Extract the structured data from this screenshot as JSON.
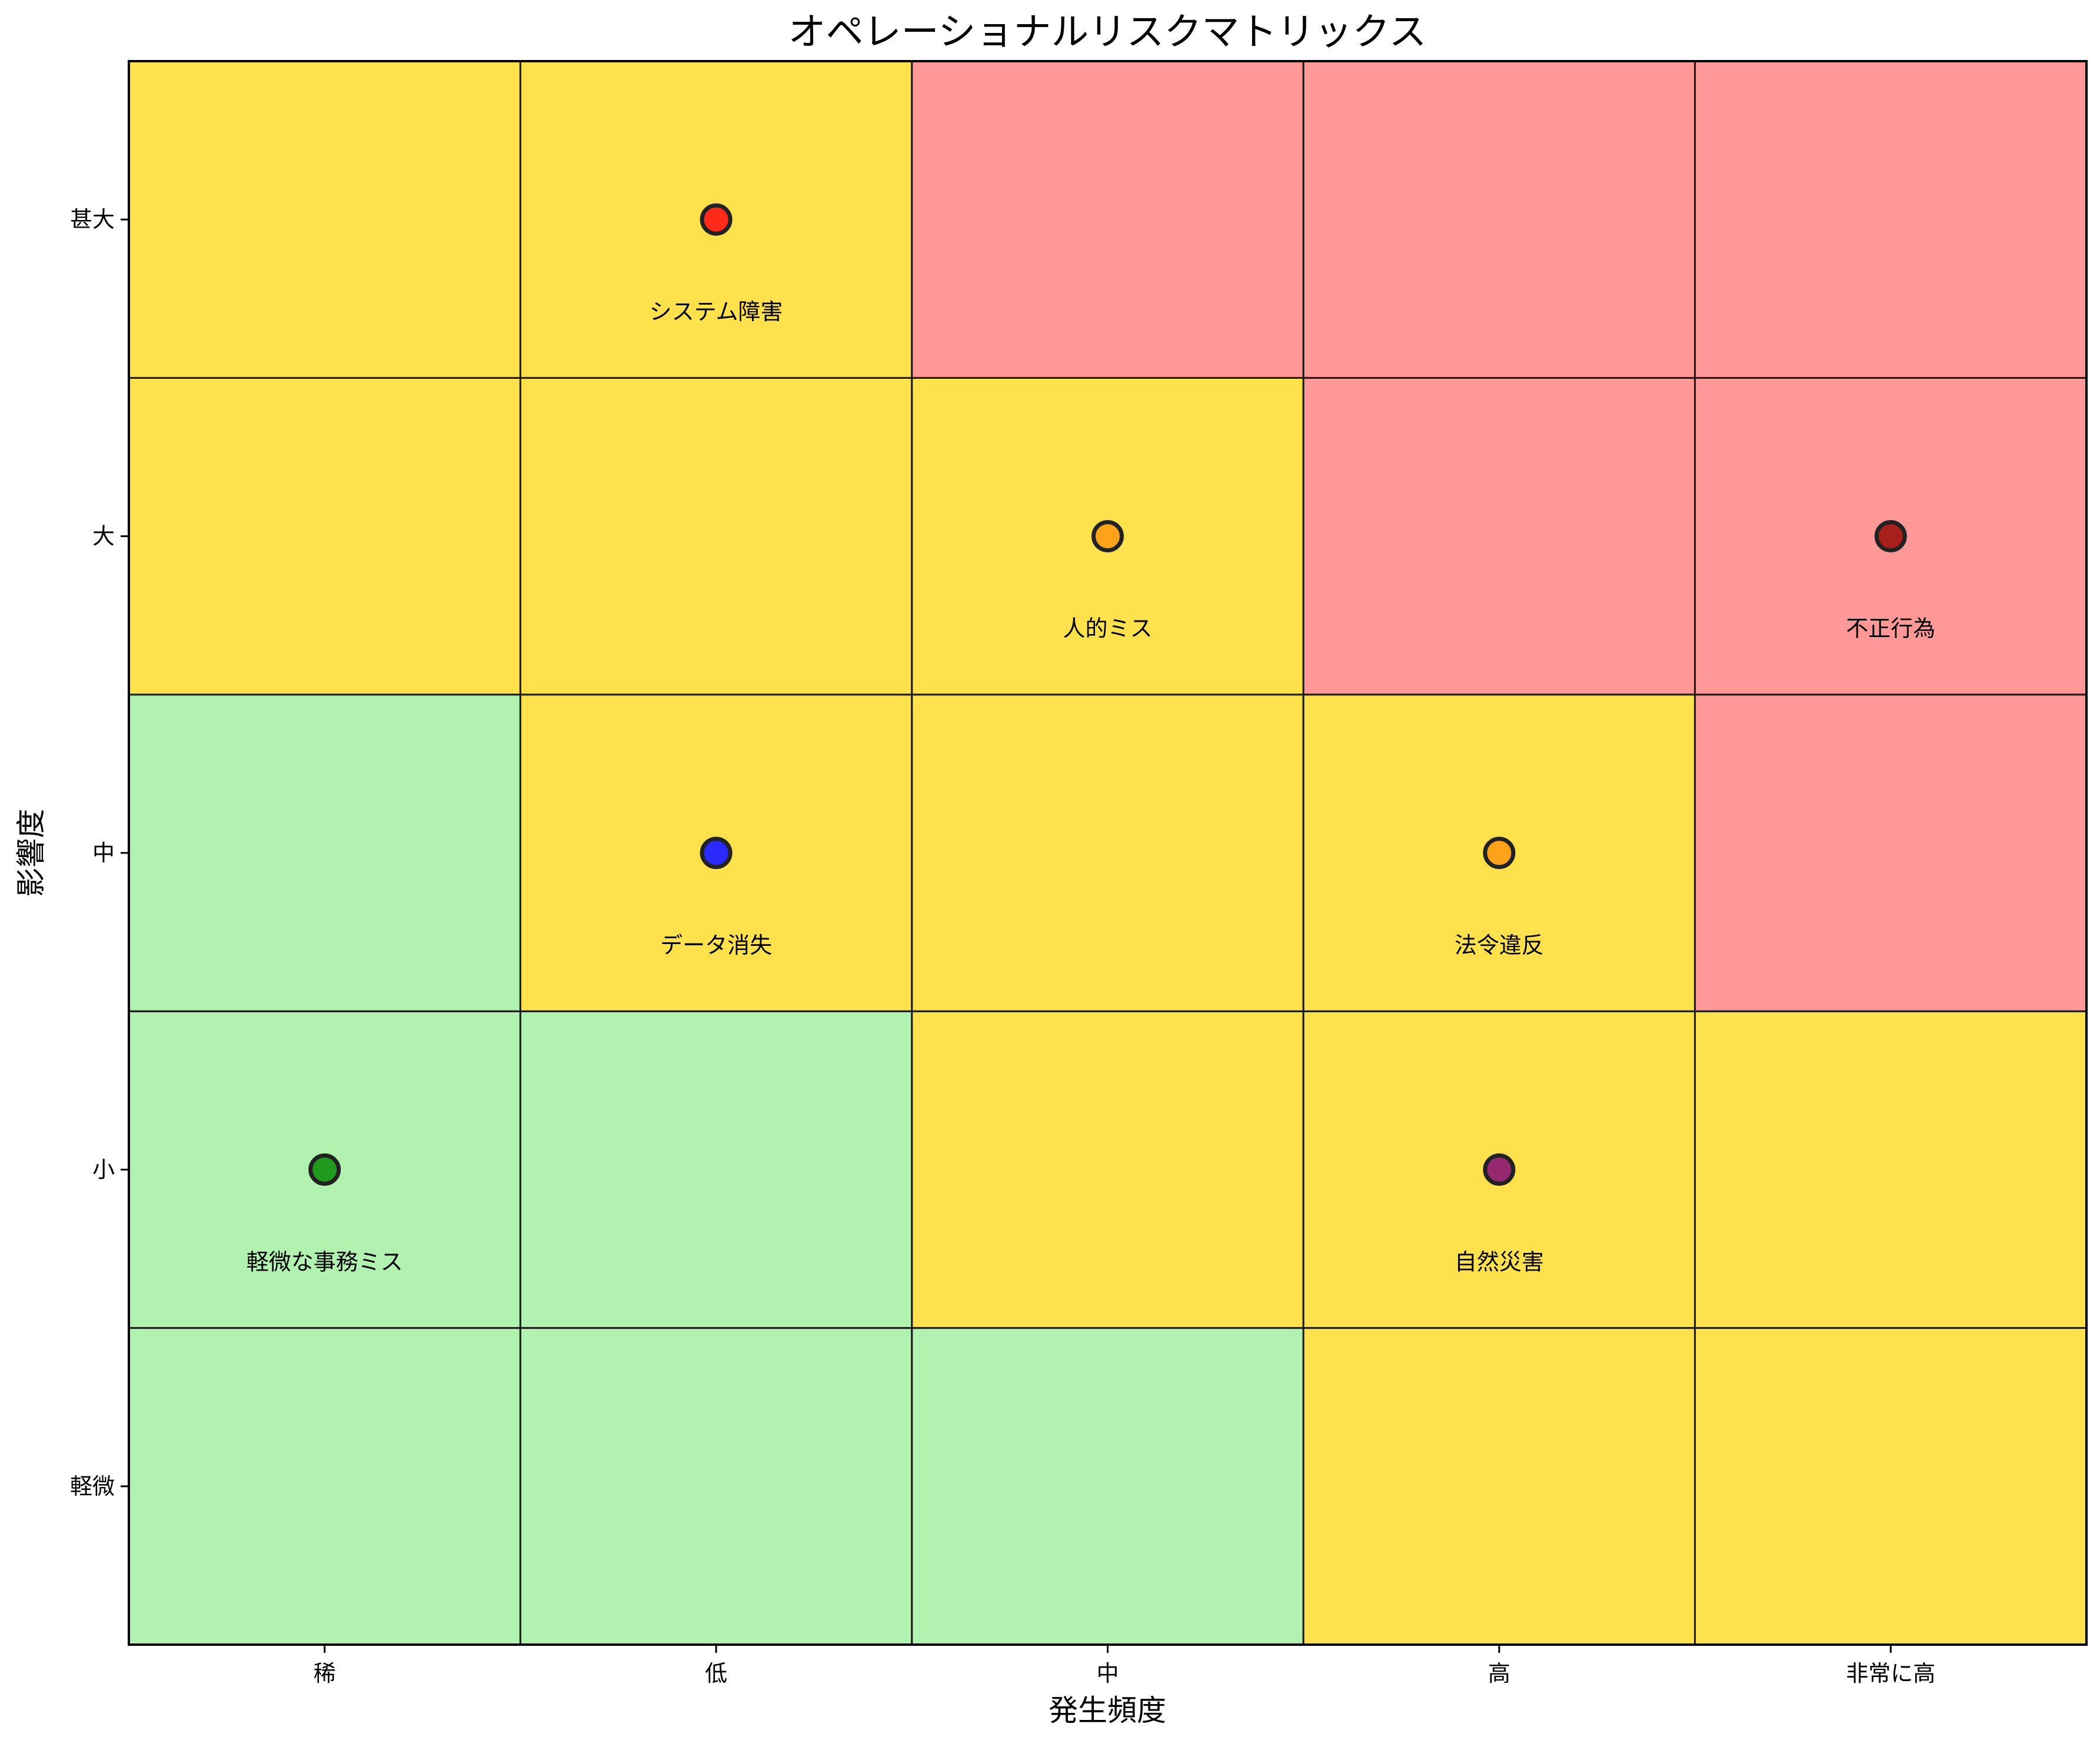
{
  "chart_data": {
    "type": "heatmap",
    "title": "オペレーショナルリスクマトリックス",
    "xlabel": "発生頻度",
    "ylabel": "影響度",
    "x_categories": [
      "稀",
      "低",
      "中",
      "高",
      "非常に高"
    ],
    "y_categories": [
      "軽微",
      "小",
      "中",
      "大",
      "甚大"
    ],
    "zone_colors": {
      "low": "#b2f2b0",
      "medium": "#ffe14d",
      "high": "#ff9896"
    },
    "grid_zones": [
      [
        "low",
        "low",
        "low",
        "medium",
        "medium"
      ],
      [
        "low",
        "low",
        "medium",
        "medium",
        "medium"
      ],
      [
        "low",
        "medium",
        "medium",
        "medium",
        "high"
      ],
      [
        "medium",
        "medium",
        "medium",
        "high",
        "high"
      ],
      [
        "medium",
        "medium",
        "high",
        "high",
        "high"
      ]
    ],
    "risks": [
      {
        "name": "システム障害",
        "x": 1,
        "y": 4,
        "color": "#ff2a1a"
      },
      {
        "name": "人的ミス",
        "x": 2,
        "y": 3,
        "color": "#ffa31a"
      },
      {
        "name": "不正行為",
        "x": 4,
        "y": 3,
        "color": "#a8201a"
      },
      {
        "name": "データ消失",
        "x": 1,
        "y": 2,
        "color": "#2a2aff"
      },
      {
        "name": "法令違反",
        "x": 3,
        "y": 2,
        "color": "#ffa31a"
      },
      {
        "name": "軽微な事務ミス",
        "x": 0,
        "y": 1,
        "color": "#1f9a1f"
      },
      {
        "name": "自然災害",
        "x": 3,
        "y": 1,
        "color": "#95286f"
      }
    ]
  }
}
